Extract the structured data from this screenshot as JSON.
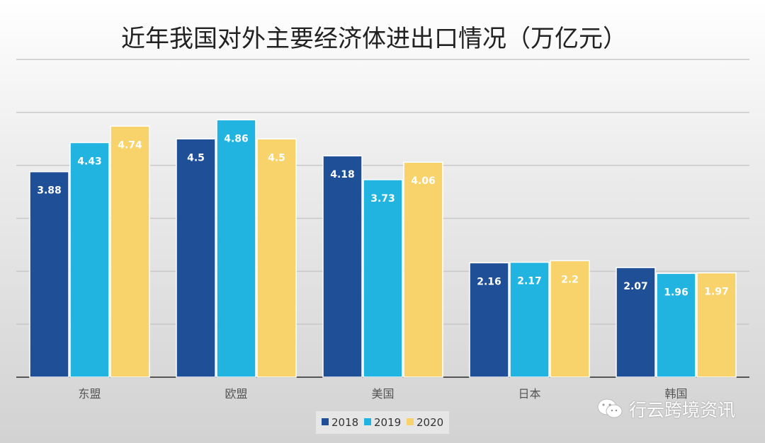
{
  "chart_data": {
    "type": "bar",
    "title": "近年我国对外主要经济体进出口情况（万亿元）",
    "categories": [
      "东盟",
      "欧盟",
      "美国",
      "日本",
      "韩国"
    ],
    "series": [
      {
        "name": "2018",
        "color": "#1f4f97",
        "values": [
          3.88,
          4.5,
          4.18,
          2.16,
          2.07
        ]
      },
      {
        "name": "2019",
        "color": "#22b4e0",
        "values": [
          4.43,
          4.86,
          3.73,
          2.17,
          1.96
        ]
      },
      {
        "name": "2020",
        "color": "#f8d36b",
        "values": [
          4.74,
          4.5,
          4.06,
          2.2,
          1.97
        ]
      }
    ],
    "ylim": [
      0,
      6
    ],
    "grid": true,
    "legend": "bottom-left",
    "xlabel": "",
    "ylabel": ""
  },
  "watermark": "行云跨境资讯"
}
